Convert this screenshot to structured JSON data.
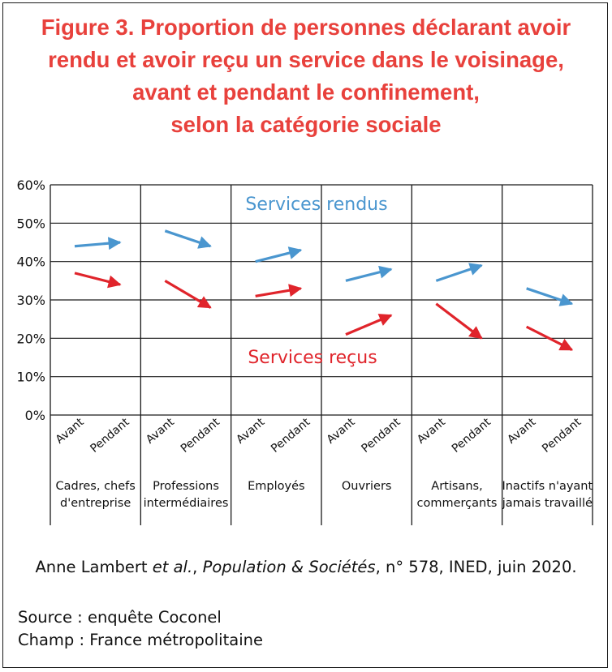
{
  "title_lines": [
    "Figure 3. Proportion de personnes déclarant avoir",
    "rendu et avoir reçu un service  dans le voisinage,",
    "avant et pendant le confinement,",
    "selon la catégorie sociale"
  ],
  "colors": {
    "title": "#e8413c",
    "rendus": "#4a96cf",
    "recus": "#e0242b"
  },
  "chart_data": {
    "type": "line",
    "ylim": [
      0,
      60
    ],
    "y_ticks": [
      "0%",
      "10%",
      "20%",
      "30%",
      "40%",
      "50%",
      "60%"
    ],
    "point_labels": [
      "Avant",
      "Pendant"
    ],
    "categories": [
      [
        "Cadres, chefs",
        "d'entreprise"
      ],
      [
        "Professions",
        "intermédiaires"
      ],
      [
        "Employés"
      ],
      [
        "Ouvriers"
      ],
      [
        "Artisans,",
        "commerçants"
      ],
      [
        "Inactifs n'ayant",
        "jamais travaillé"
      ]
    ],
    "series": [
      {
        "name": "Services rendus",
        "color": "#4a96cf",
        "values": [
          [
            44,
            45
          ],
          [
            48,
            44
          ],
          [
            40,
            43
          ],
          [
            35,
            38
          ],
          [
            35,
            39
          ],
          [
            33,
            29
          ]
        ]
      },
      {
        "name": "Services reçus",
        "color": "#e0242b",
        "values": [
          [
            37,
            34
          ],
          [
            35,
            28
          ],
          [
            31,
            33
          ],
          [
            21,
            26
          ],
          [
            29,
            20
          ],
          [
            23,
            17
          ]
        ]
      }
    ],
    "grid": true
  },
  "citation": {
    "prefix": "Anne Lambert ",
    "etal": "et al.",
    "sep1": ", ",
    "journal": "Population & Sociétés",
    "suffix": ", n° 578, INED, juin 2020."
  },
  "source_lines": [
    "Source : enquête Coconel",
    "Champ : France métropolitaine"
  ]
}
